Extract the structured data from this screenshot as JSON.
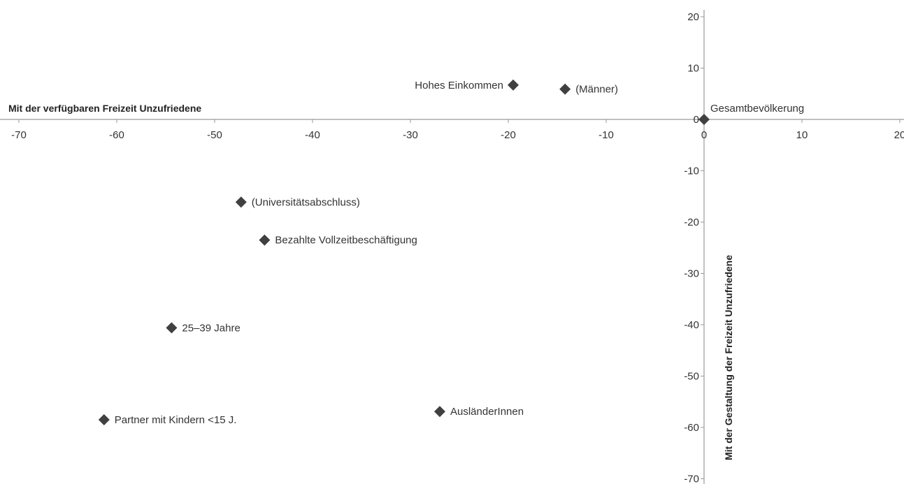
{
  "chart_data": {
    "type": "scatter",
    "xlabel": "Mit der verfügbaren Freizeit Unzufriedene",
    "ylabel": "Mit der Gestaltung der Freizeit Unzufriedene",
    "xlim": [
      -70,
      20
    ],
    "ylim": [
      -70,
      20
    ],
    "x_ticks": [
      -70,
      -60,
      -50,
      -40,
      -30,
      -20,
      -10,
      0,
      10,
      20
    ],
    "y_ticks": [
      20,
      10,
      0,
      -10,
      -20,
      -30,
      -40,
      -50,
      -60,
      -70
    ],
    "grid": false,
    "marker": "diamond",
    "marker_color": "#404040",
    "axis_color": "#9a9a9a",
    "points": [
      {
        "label": "Hohes Einkommen",
        "x": -19.5,
        "y": 6.7,
        "label_side": "left"
      },
      {
        "label": "(Männer)",
        "x": -14.2,
        "y": 5.9,
        "label_side": "right"
      },
      {
        "label": "Gesamtbevölkerung",
        "x": 0,
        "y": 0,
        "label_side": "right-above"
      },
      {
        "label": "(Universitätsabschluss)",
        "x": -47.3,
        "y": -16.1,
        "label_side": "right"
      },
      {
        "label": "Bezahlte Vollzeitbeschäftigung",
        "x": -44.9,
        "y": -23.5,
        "label_side": "right"
      },
      {
        "label": "25–39 Jahre",
        "x": -54.4,
        "y": -40.6,
        "label_side": "right"
      },
      {
        "label": "AusländerInnen",
        "x": -27.0,
        "y": -56.9,
        "label_side": "right"
      },
      {
        "label": "Partner mit Kindern <15 J.",
        "x": -61.3,
        "y": -58.5,
        "label_side": "right"
      }
    ]
  }
}
